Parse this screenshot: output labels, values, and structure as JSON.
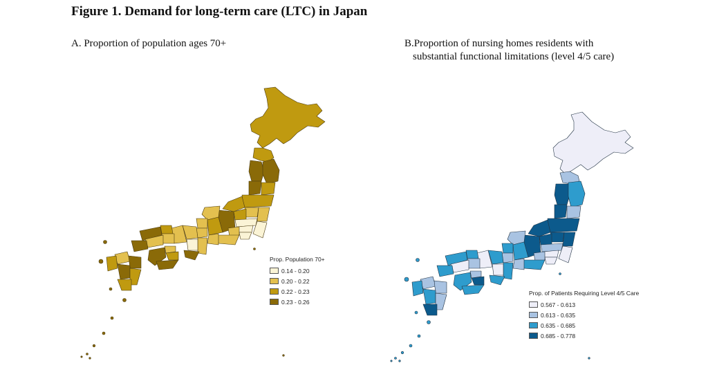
{
  "figure_title": "Figure 1. Demand for long-term care (LTC) in Japan",
  "panel_a": {
    "title": "A. Proportion of population ages 70+",
    "legend_title": "Prop. Population 70+",
    "legend": [
      {
        "label": "0.14 - 0.20",
        "color": "#fbf4d6"
      },
      {
        "label": "0.20 - 0.22",
        "color": "#e3c04f"
      },
      {
        "label": "0.22 - 0.23",
        "color": "#c09a10"
      },
      {
        "label": "0.23 - 0.26",
        "color": "#8a6a08"
      }
    ]
  },
  "panel_b": {
    "title_line1": "B.Proportion of nursing homes residents with",
    "title_line2": "substantial functional limitations (level 4/5 care)",
    "legend_title": "Prop. of Patients Requiring Level 4/5 Care",
    "legend": [
      {
        "label": "0.567 - 0.613",
        "color": "#eeeef8"
      },
      {
        "label": "0.613 - 0.635",
        "color": "#a9c3e2"
      },
      {
        "label": "0.635 - 0.685",
        "color": "#2e9ccd"
      },
      {
        "label": "0.685 - 0.778",
        "color": "#0c5a8c"
      }
    ]
  }
}
